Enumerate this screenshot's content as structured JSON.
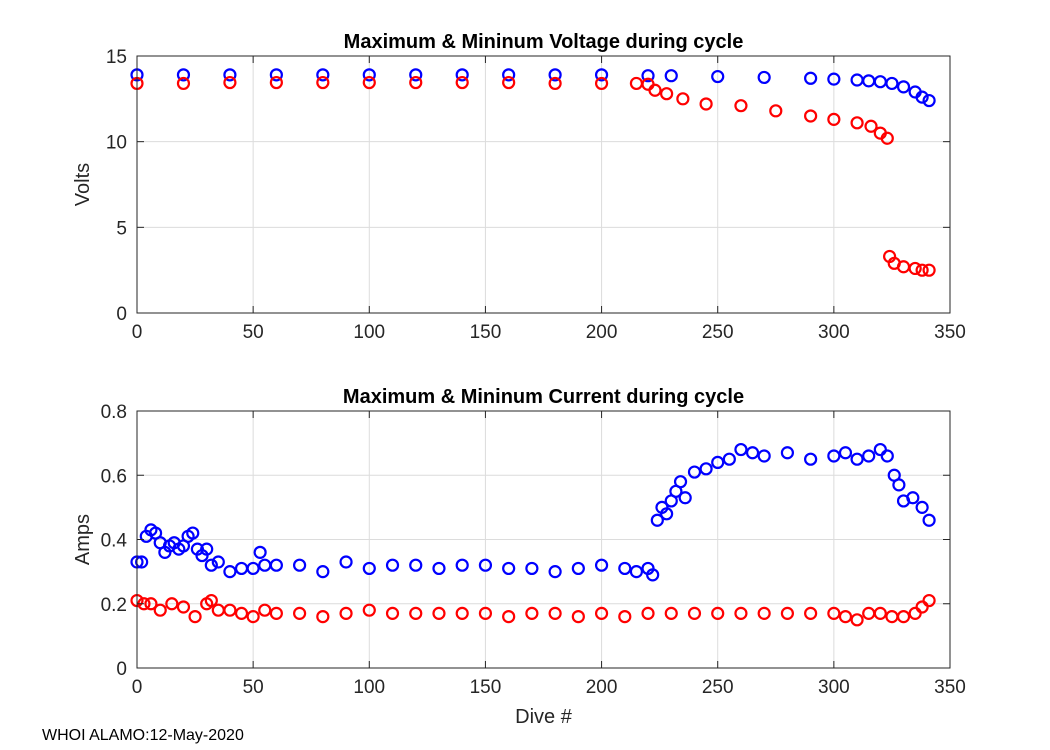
{
  "footer_text": "WHOI ALAMO:12-May-2020",
  "colors": {
    "max_series": "#0000ff",
    "min_series": "#ff0000",
    "grid": "#dcdcdc",
    "axis": "#262626"
  },
  "chart_data": [
    {
      "type": "scatter",
      "title": "Maximum & Mininum Voltage during cycle",
      "xlabel": "",
      "ylabel": "Volts",
      "xlim": [
        0,
        350
      ],
      "ylim": [
        0,
        15
      ],
      "xticks": [
        0,
        50,
        100,
        150,
        200,
        250,
        300,
        350
      ],
      "yticks": [
        0,
        5,
        10,
        15
      ],
      "grid": true,
      "series": [
        {
          "name": "Maximum",
          "color": "#0000ff",
          "x": [
            0,
            20,
            40,
            60,
            80,
            100,
            120,
            140,
            160,
            180,
            200,
            220,
            230,
            250,
            270,
            290,
            300,
            310,
            315,
            320,
            325,
            330,
            335,
            338,
            341
          ],
          "y": [
            13.9,
            13.9,
            13.9,
            13.9,
            13.9,
            13.9,
            13.9,
            13.9,
            13.9,
            13.9,
            13.9,
            13.85,
            13.85,
            13.8,
            13.75,
            13.7,
            13.65,
            13.6,
            13.55,
            13.5,
            13.4,
            13.2,
            12.9,
            12.6,
            12.4
          ]
        },
        {
          "name": "Minimum",
          "color": "#ff0000",
          "x": [
            0,
            20,
            40,
            60,
            80,
            100,
            120,
            140,
            160,
            180,
            200,
            215,
            220,
            223,
            228,
            235,
            245,
            260,
            275,
            290,
            300,
            310,
            316,
            320,
            323,
            324,
            326,
            330,
            335,
            338,
            341
          ],
          "y": [
            13.4,
            13.4,
            13.45,
            13.45,
            13.45,
            13.45,
            13.45,
            13.45,
            13.45,
            13.4,
            13.4,
            13.4,
            13.35,
            13.0,
            12.8,
            12.5,
            12.2,
            12.1,
            11.8,
            11.5,
            11.3,
            11.1,
            10.9,
            10.5,
            10.2,
            3.3,
            2.9,
            2.7,
            2.6,
            2.5,
            2.5
          ]
        }
      ]
    },
    {
      "type": "scatter",
      "title": "Maximum & Mininum Current during cycle",
      "xlabel": "Dive #",
      "ylabel": "Amps",
      "xlim": [
        0,
        350
      ],
      "ylim": [
        0,
        0.8
      ],
      "xticks": [
        0,
        50,
        100,
        150,
        200,
        250,
        300,
        350
      ],
      "yticks": [
        0,
        0.2,
        0.4,
        0.6,
        0.8
      ],
      "grid": true,
      "series": [
        {
          "name": "Maximum",
          "color": "#0000ff",
          "x": [
            0,
            2,
            4,
            6,
            8,
            10,
            12,
            14,
            16,
            18,
            20,
            22,
            24,
            26,
            28,
            30,
            32,
            35,
            40,
            45,
            50,
            53,
            55,
            60,
            70,
            80,
            90,
            100,
            110,
            120,
            130,
            140,
            150,
            160,
            170,
            180,
            190,
            200,
            210,
            215,
            220,
            222,
            224,
            226,
            228,
            230,
            232,
            234,
            236,
            240,
            245,
            250,
            255,
            260,
            265,
            270,
            280,
            290,
            300,
            305,
            310,
            315,
            320,
            323,
            326,
            328,
            330,
            334,
            338,
            341
          ],
          "y": [
            0.33,
            0.33,
            0.41,
            0.43,
            0.42,
            0.39,
            0.36,
            0.38,
            0.39,
            0.37,
            0.38,
            0.41,
            0.42,
            0.37,
            0.35,
            0.37,
            0.32,
            0.33,
            0.3,
            0.31,
            0.31,
            0.36,
            0.32,
            0.32,
            0.32,
            0.3,
            0.33,
            0.31,
            0.32,
            0.32,
            0.31,
            0.32,
            0.32,
            0.31,
            0.31,
            0.3,
            0.31,
            0.32,
            0.31,
            0.3,
            0.31,
            0.29,
            0.46,
            0.5,
            0.48,
            0.52,
            0.55,
            0.58,
            0.53,
            0.61,
            0.62,
            0.64,
            0.65,
            0.68,
            0.67,
            0.66,
            0.67,
            0.65,
            0.66,
            0.67,
            0.65,
            0.66,
            0.68,
            0.66,
            0.6,
            0.57,
            0.52,
            0.53,
            0.5,
            0.46
          ]
        },
        {
          "name": "Minimum",
          "color": "#ff0000",
          "x": [
            0,
            3,
            6,
            10,
            15,
            20,
            25,
            30,
            32,
            35,
            40,
            45,
            50,
            55,
            60,
            70,
            80,
            90,
            100,
            110,
            120,
            130,
            140,
            150,
            160,
            170,
            180,
            190,
            200,
            210,
            220,
            230,
            240,
            250,
            260,
            270,
            280,
            290,
            300,
            305,
            310,
            315,
            320,
            325,
            330,
            335,
            338,
            341
          ],
          "y": [
            0.21,
            0.2,
            0.2,
            0.18,
            0.2,
            0.19,
            0.16,
            0.2,
            0.21,
            0.18,
            0.18,
            0.17,
            0.16,
            0.18,
            0.17,
            0.17,
            0.16,
            0.17,
            0.18,
            0.17,
            0.17,
            0.17,
            0.17,
            0.17,
            0.16,
            0.17,
            0.17,
            0.16,
            0.17,
            0.16,
            0.17,
            0.17,
            0.17,
            0.17,
            0.17,
            0.17,
            0.17,
            0.17,
            0.17,
            0.16,
            0.15,
            0.17,
            0.17,
            0.16,
            0.16,
            0.17,
            0.19,
            0.21
          ]
        }
      ]
    }
  ]
}
